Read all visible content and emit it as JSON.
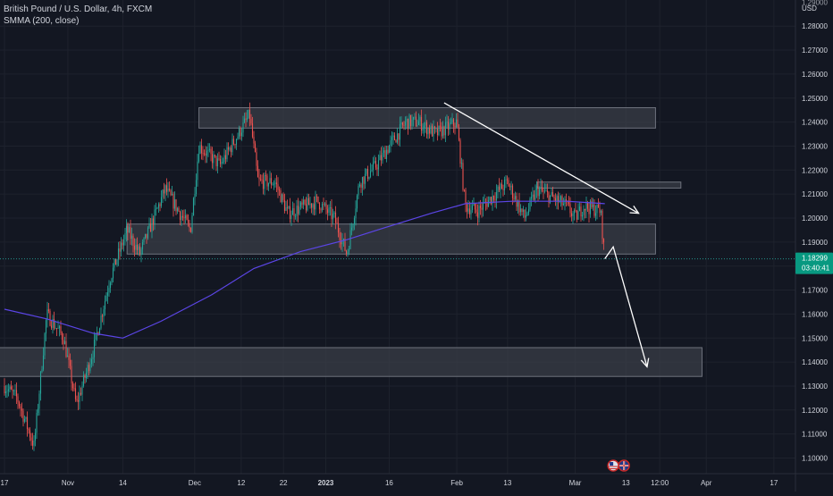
{
  "header": {
    "title": "British Pound / U.S. Dollar, 4h, FXCM",
    "indicator": "SMMA (200, close)"
  },
  "colors": {
    "background": "#131722",
    "grid": "#1e222d",
    "text": "#d1d4dc",
    "up": "#26a69a",
    "down": "#ef5350",
    "smma": "#5b45e6",
    "zone_fill": "#3a3d47",
    "zone_stroke": "#6e727d",
    "arrow": "#ffffff",
    "price_label_bg": "#089981",
    "price_line": "#26a69a"
  },
  "chart_data": {
    "type": "candlestick",
    "symbol": "GBPUSD",
    "timeframe": "4h",
    "y_axis": {
      "unit": "USD",
      "ticks": [
        1.28,
        1.27,
        1.26,
        1.25,
        1.24,
        1.23,
        1.22,
        1.21,
        1.2,
        1.19,
        1.18,
        1.17,
        1.16,
        1.15,
        1.14,
        1.13,
        1.12,
        1.11,
        1.1
      ],
      "tick_labels": [
        "1.28000",
        "1.27000",
        "1.26000",
        "1.25000",
        "1.24000",
        "1.23000",
        "1.22000",
        "1.21000",
        "1.20000",
        "1.19000",
        "1.18000",
        "1.17000",
        "1.16000",
        "1.15000",
        "1.14000",
        "1.13000",
        "1.12000",
        "1.11000",
        "1.10000"
      ],
      "top_label": "1.29000",
      "range": [
        1.095,
        1.295
      ]
    },
    "x_axis": {
      "tick_labels": [
        "17",
        "Nov",
        "14",
        "Dec",
        "12",
        "22",
        "2023",
        "16",
        "Feb",
        "13",
        "Mar",
        "13",
        "12:00",
        "Apr",
        "17"
      ]
    },
    "current_price": {
      "value": 1.18299,
      "label": "1.18299",
      "countdown": "03:40:41"
    },
    "price_path": [
      {
        "date": "Oct 17",
        "price": 1.13
      },
      {
        "date": "Oct 20",
        "price": 1.125
      },
      {
        "date": "Oct 24",
        "price": 1.105
      },
      {
        "date": "Oct 27",
        "price": 1.16
      },
      {
        "date": "Oct 31",
        "price": 1.15
      },
      {
        "date": "Nov 3",
        "price": 1.122
      },
      {
        "date": "Nov 7",
        "price": 1.145
      },
      {
        "date": "Nov 11",
        "price": 1.175
      },
      {
        "date": "Nov 15",
        "price": 1.195
      },
      {
        "date": "Nov 18",
        "price": 1.185
      },
      {
        "date": "Nov 24",
        "price": 1.212
      },
      {
        "date": "Nov 30",
        "price": 1.195
      },
      {
        "date": "Dec 2",
        "price": 1.23
      },
      {
        "date": "Dec 7",
        "price": 1.222
      },
      {
        "date": "Dec 14",
        "price": 1.243
      },
      {
        "date": "Dec 16",
        "price": 1.215
      },
      {
        "date": "Dec 20",
        "price": 1.215
      },
      {
        "date": "Dec 23",
        "price": 1.202
      },
      {
        "date": "Dec 30",
        "price": 1.207
      },
      {
        "date": "Jan 3",
        "price": 1.2
      },
      {
        "date": "Jan 6",
        "price": 1.185
      },
      {
        "date": "Jan 9",
        "price": 1.215
      },
      {
        "date": "Jan 13",
        "price": 1.222
      },
      {
        "date": "Jan 16",
        "price": 1.23
      },
      {
        "date": "Jan 20",
        "price": 1.24
      },
      {
        "date": "Jan 23",
        "price": 1.24
      },
      {
        "date": "Jan 27",
        "price": 1.235
      },
      {
        "date": "Feb 1",
        "price": 1.24
      },
      {
        "date": "Feb 3",
        "price": 1.205
      },
      {
        "date": "Feb 6",
        "price": 1.203
      },
      {
        "date": "Feb 13",
        "price": 1.215
      },
      {
        "date": "Feb 17",
        "price": 1.2
      },
      {
        "date": "Feb 20",
        "price": 1.212
      },
      {
        "date": "Feb 27",
        "price": 1.205
      },
      {
        "date": "Mar 1",
        "price": 1.2
      },
      {
        "date": "Mar 3",
        "price": 1.205
      },
      {
        "date": "Mar 7",
        "price": 1.203
      },
      {
        "date": "Mar 8",
        "price": 1.183
      }
    ],
    "smma_path": [
      {
        "date": "Oct 17",
        "price": 1.162
      },
      {
        "date": "Oct 27",
        "price": 1.158
      },
      {
        "date": "Nov 7",
        "price": 1.152
      },
      {
        "date": "Nov 14",
        "price": 1.15
      },
      {
        "date": "Nov 23",
        "price": 1.157
      },
      {
        "date": "Dec 5",
        "price": 1.168
      },
      {
        "date": "Dec 15",
        "price": 1.179
      },
      {
        "date": "Dec 26",
        "price": 1.186
      },
      {
        "date": "Jan 6",
        "price": 1.191
      },
      {
        "date": "Jan 15",
        "price": 1.196
      },
      {
        "date": "Jan 26",
        "price": 1.202
      },
      {
        "date": "Feb 3",
        "price": 1.206
      },
      {
        "date": "Feb 14",
        "price": 1.207
      },
      {
        "date": "Feb 27",
        "price": 1.207
      },
      {
        "date": "Mar 8",
        "price": 1.206
      }
    ],
    "zones": [
      {
        "name": "resistance-zone-top",
        "x_start": "Dec 2",
        "x_end": "Mar 20",
        "y_low": 1.2375,
        "y_high": 1.246
      },
      {
        "name": "resistance-zone-minor",
        "x_start": "Feb 20",
        "x_end": "Mar 26",
        "y_low": 1.215,
        "y_high": 1.2125
      },
      {
        "name": "support-zone-middle",
        "x_start": "Nov 15",
        "x_end": "Mar 20",
        "y_low": 1.185,
        "y_high": 1.1975
      },
      {
        "name": "support-zone-bottom",
        "x_start": "Oct 12",
        "x_end": "Mar 31",
        "y_low": 1.134,
        "y_high": 1.146
      }
    ],
    "arrows": [
      {
        "name": "arrow-down-from-resistance",
        "from": {
          "date": "Jan 29",
          "price": 1.248
        },
        "to": {
          "date": "Mar 16",
          "price": 1.202
        }
      },
      {
        "name": "arrow-forecast-down",
        "from": {
          "date": "Mar 8",
          "price": 1.183
        },
        "via": {
          "date": "Mar 10",
          "price": 1.188
        },
        "to": {
          "date": "Mar 18",
          "price": 1.138
        }
      }
    ],
    "event_badges": [
      "us-flag-icon",
      "uk-flag-icon"
    ],
    "grid": true
  }
}
